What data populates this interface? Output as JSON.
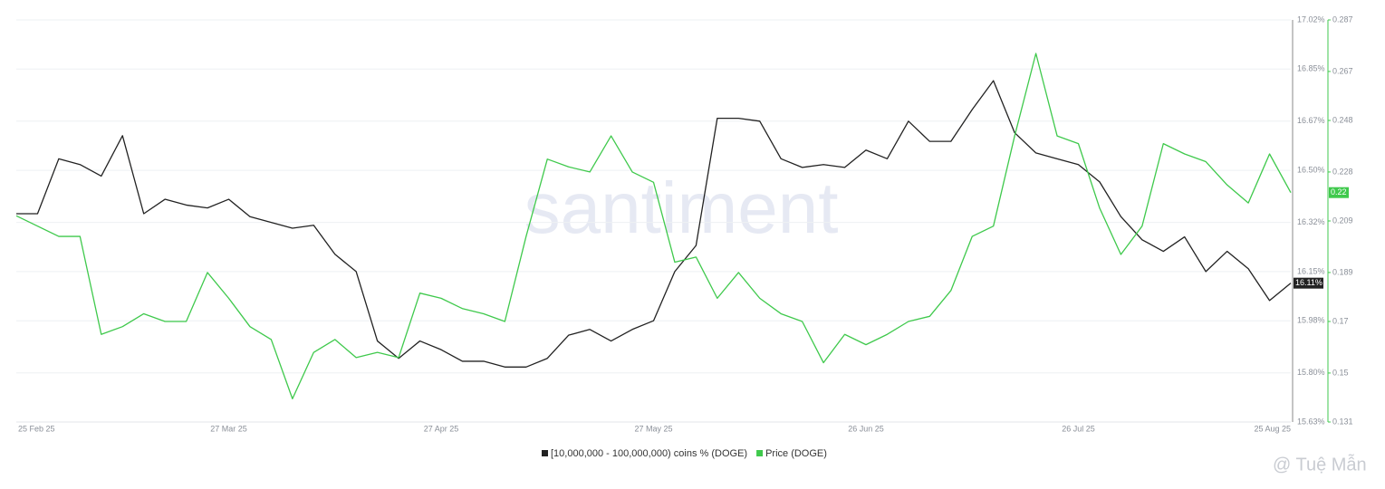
{
  "chart_data": {
    "type": "line",
    "watermark": "santiment",
    "credit": "@ Tuệ Mẫn",
    "categories": [
      "25 Feb 25",
      null,
      null,
      null,
      null,
      null,
      null,
      null,
      null,
      null,
      "27 Mar 25",
      null,
      null,
      null,
      null,
      null,
      null,
      null,
      null,
      null,
      "27 Apr 25",
      null,
      null,
      null,
      null,
      null,
      null,
      null,
      null,
      null,
      "27 May 25",
      null,
      null,
      null,
      null,
      null,
      null,
      null,
      null,
      null,
      "26 Jun 25",
      null,
      null,
      null,
      null,
      null,
      null,
      null,
      null,
      null,
      "26 Jul 25",
      null,
      null,
      null,
      null,
      null,
      null,
      null,
      null,
      null,
      "25 Aug 25"
    ],
    "ylim": [
      15.63,
      17.02
    ],
    "yticks": [
      {
        "value": 15.63,
        "label": "15.63%"
      },
      {
        "value": 15.8,
        "label": "15.80%"
      },
      {
        "value": 15.98,
        "label": "15.98%"
      },
      {
        "value": 16.15,
        "label": "16.15%"
      },
      {
        "value": 16.32,
        "label": "16.32%"
      },
      {
        "value": 16.5,
        "label": "16.50%"
      },
      {
        "value": 16.67,
        "label": "16.67%"
      },
      {
        "value": 16.85,
        "label": "16.85%"
      },
      {
        "value": 17.02,
        "label": "17.02%"
      }
    ],
    "y2lim": [
      0.131,
      0.287
    ],
    "y2ticks": [
      0.131,
      0.15,
      0.17,
      0.189,
      0.209,
      0.228,
      0.248,
      0.267,
      0.287
    ],
    "grid": true,
    "legend": "bottom",
    "series": [
      {
        "name": "[10,000,000 - 100,000,000) coins % (DOGE)",
        "color": "#222222",
        "values": [
          16.35,
          16.35,
          16.54,
          16.52,
          16.48,
          16.62,
          16.35,
          16.4,
          16.38,
          16.37,
          16.4,
          16.34,
          16.32,
          16.3,
          16.31,
          16.21,
          16.15,
          15.91,
          15.85,
          15.91,
          15.88,
          15.84,
          15.84,
          15.82,
          15.82,
          15.85,
          15.93,
          15.95,
          15.91,
          15.95,
          15.98,
          16.15,
          16.24,
          16.68,
          16.68,
          16.67,
          16.54,
          16.51,
          16.52,
          16.51,
          16.57,
          16.54,
          16.67,
          16.6,
          16.6,
          16.71,
          16.81,
          16.63,
          16.56,
          16.54,
          16.52,
          16.46,
          16.34,
          16.26,
          16.22,
          16.27,
          16.15,
          16.22,
          16.16,
          16.05,
          16.11
        ],
        "value_labels": [
          null,
          null,
          null,
          null,
          null,
          null,
          null,
          null,
          null,
          null,
          null,
          null,
          null,
          null,
          null,
          null,
          null,
          null,
          null,
          null,
          null,
          null,
          null,
          null,
          null,
          null,
          null,
          null,
          null,
          null,
          null,
          null,
          null,
          null,
          null,
          null,
          null,
          null,
          null,
          null,
          null,
          null,
          null,
          null,
          null,
          null,
          null,
          null,
          null,
          null,
          null,
          null,
          null,
          null,
          null,
          null,
          null,
          null,
          null,
          null,
          "16.11%"
        ]
      },
      {
        "name": "Price (DOGE)",
        "color": "#3fc94c",
        "axis": "y2",
        "values": [
          0.211,
          0.207,
          0.203,
          0.203,
          0.165,
          0.168,
          0.173,
          0.17,
          0.17,
          0.189,
          0.179,
          0.168,
          0.163,
          0.14,
          0.158,
          0.163,
          0.156,
          0.158,
          0.156,
          0.181,
          0.179,
          0.175,
          0.173,
          0.17,
          0.203,
          0.233,
          0.23,
          0.228,
          0.242,
          0.228,
          0.224,
          0.193,
          0.195,
          0.179,
          0.189,
          0.179,
          0.173,
          0.17,
          0.154,
          0.165,
          0.161,
          0.165,
          0.17,
          0.172,
          0.182,
          0.203,
          0.207,
          0.242,
          0.274,
          0.242,
          0.239,
          0.214,
          0.196,
          0.207,
          0.239,
          0.235,
          0.232,
          0.223,
          0.216,
          0.235,
          0.22
        ],
        "value_labels": [
          null,
          null,
          null,
          null,
          null,
          null,
          null,
          null,
          null,
          null,
          null,
          null,
          null,
          null,
          null,
          null,
          null,
          null,
          null,
          null,
          null,
          null,
          null,
          null,
          null,
          null,
          null,
          null,
          null,
          null,
          null,
          null,
          null,
          null,
          null,
          null,
          null,
          null,
          null,
          null,
          null,
          null,
          null,
          null,
          null,
          null,
          null,
          null,
          null,
          null,
          null,
          null,
          null,
          null,
          null,
          null,
          null,
          null,
          null,
          null,
          "0.22"
        ]
      }
    ]
  }
}
